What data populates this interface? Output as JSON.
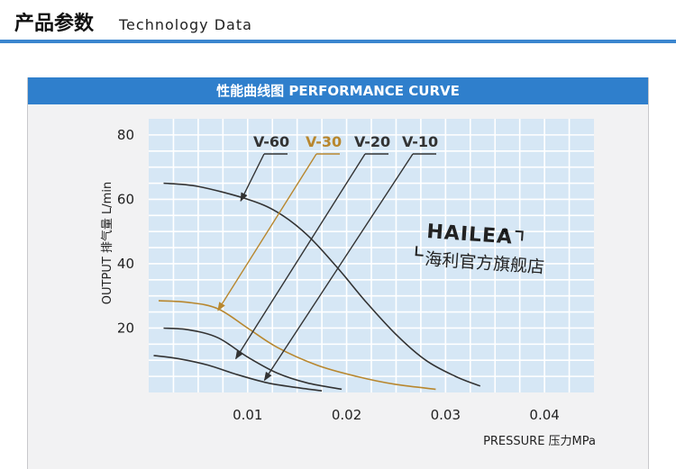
{
  "header": {
    "title": "产品参数",
    "subtitle": "Technology Data"
  },
  "colors": {
    "accent": "#3b86cf",
    "panel_header": "#2f7fcc",
    "plot_bg": "#d6e7f5",
    "series_dark": "#333333",
    "series_highlight": "#b8872e"
  },
  "chart_data": {
    "type": "line",
    "title": "性能曲线图 PERFORMANCE CURVE",
    "xlabel": "PRESSURE 压力MPa",
    "ylabel": "OUTPUT 排气量 L/min",
    "xlim": [
      0,
      0.045
    ],
    "ylim": [
      0,
      85
    ],
    "xticks": [
      "0.01",
      "0.02",
      "0.03",
      "0.04"
    ],
    "yticks": [
      "20",
      "40",
      "60",
      "80"
    ],
    "grid": true,
    "legend": "top",
    "series": [
      {
        "name": "V-60",
        "color": "#333333",
        "x": [
          0.0015,
          0.005,
          0.01,
          0.013,
          0.016,
          0.019,
          0.022,
          0.025,
          0.028,
          0.031,
          0.0335
        ],
        "y": [
          65,
          64,
          60,
          56,
          49,
          39,
          28,
          18,
          10,
          5,
          2
        ]
      },
      {
        "name": "V-30",
        "color": "#b8872e",
        "x": [
          0.001,
          0.004,
          0.007,
          0.01,
          0.013,
          0.017,
          0.021,
          0.025,
          0.029
        ],
        "y": [
          28.5,
          28,
          26,
          20,
          14,
          8.5,
          5,
          2.5,
          1
        ]
      },
      {
        "name": "V-20",
        "color": "#333333",
        "x": [
          0.0015,
          0.004,
          0.007,
          0.01,
          0.013,
          0.016,
          0.0195
        ],
        "y": [
          20,
          19.5,
          17,
          11,
          6,
          3,
          1
        ]
      },
      {
        "name": "V-10",
        "color": "#333333",
        "x": [
          0.0005,
          0.003,
          0.006,
          0.009,
          0.012,
          0.015,
          0.0175
        ],
        "y": [
          11.5,
          10.5,
          8.5,
          5.5,
          3,
          1.5,
          0.5
        ]
      }
    ]
  },
  "logo": {
    "brand": "HAILEA",
    "reg": "®",
    "store": "海利官方旗舰店"
  }
}
